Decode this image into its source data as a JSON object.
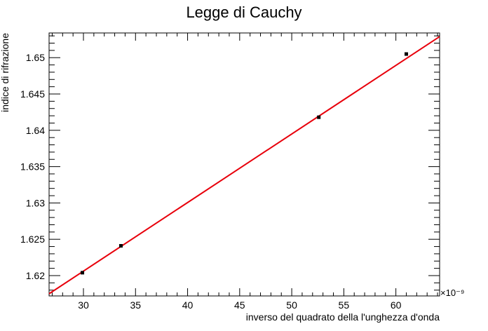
{
  "chart_data": {
    "type": "scatter",
    "title": "Legge di Cauchy",
    "xlabel": "inverso del quadrato della l'unghezza d'onda",
    "ylabel": "indice di rifrazione",
    "x_multiplier": "×10⁻⁹",
    "xlim": [
      26.7,
      64.2
    ],
    "ylim": [
      1.6172,
      1.6534
    ],
    "x_ticks": [
      30,
      35,
      40,
      45,
      50,
      55,
      60
    ],
    "x_tick_labels": [
      "30",
      "35",
      "40",
      "45",
      "50",
      "55",
      "60"
    ],
    "y_ticks": [
      1.62,
      1.625,
      1.63,
      1.635,
      1.64,
      1.645,
      1.65
    ],
    "y_tick_labels": [
      "1.62",
      "1.625",
      "1.63",
      "1.635",
      "1.64",
      "1.645",
      "1.65"
    ],
    "grid": false,
    "series": [
      {
        "kind": "points",
        "color": "#000000",
        "points": [
          {
            "x": 29.9,
            "y": 1.6204
          },
          {
            "x": 33.6,
            "y": 1.6241
          },
          {
            "x": 52.6,
            "y": 1.6418
          },
          {
            "x": 61.0,
            "y": 1.6505
          }
        ]
      },
      {
        "kind": "fit-line",
        "color": "#e8000b",
        "points": [
          {
            "x": 26.7,
            "y": 1.6175
          },
          {
            "x": 64.2,
            "y": 1.6529
          }
        ]
      }
    ]
  }
}
